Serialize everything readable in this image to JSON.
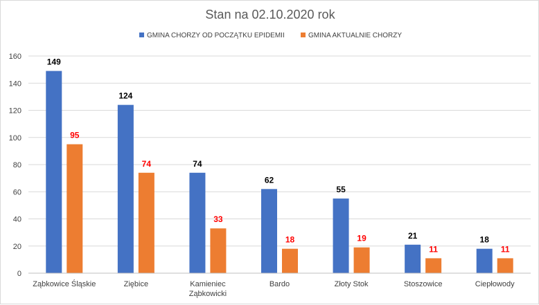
{
  "chart_data": {
    "type": "bar",
    "title": "Stan na 02.10.2020 rok",
    "categories": [
      [
        "Ząbkowice Śląskie"
      ],
      [
        "Ziębice"
      ],
      [
        "Kamieniec",
        "Ząbkowicki"
      ],
      [
        "Bardo"
      ],
      [
        "Złoty Stok"
      ],
      [
        "Stoszowice"
      ],
      [
        "Ciepłowody"
      ]
    ],
    "series": [
      {
        "name": "GMINA CHORZY OD POCZĄTKU EPIDEMII",
        "values": [
          149,
          124,
          74,
          62,
          55,
          21,
          18
        ],
        "color": "#4472C4",
        "label_color": "#000000"
      },
      {
        "name": "GMINA AKTUALNIE CHORZY",
        "values": [
          95,
          74,
          33,
          18,
          19,
          11,
          11
        ],
        "color": "#ED7D31",
        "label_color": "#FF0000"
      }
    ],
    "ylim": [
      0,
      160
    ],
    "yticks": [
      0,
      20,
      40,
      60,
      80,
      100,
      120,
      140,
      160
    ],
    "grid": true,
    "legend": "top-center",
    "xlabel": "",
    "ylabel": ""
  }
}
